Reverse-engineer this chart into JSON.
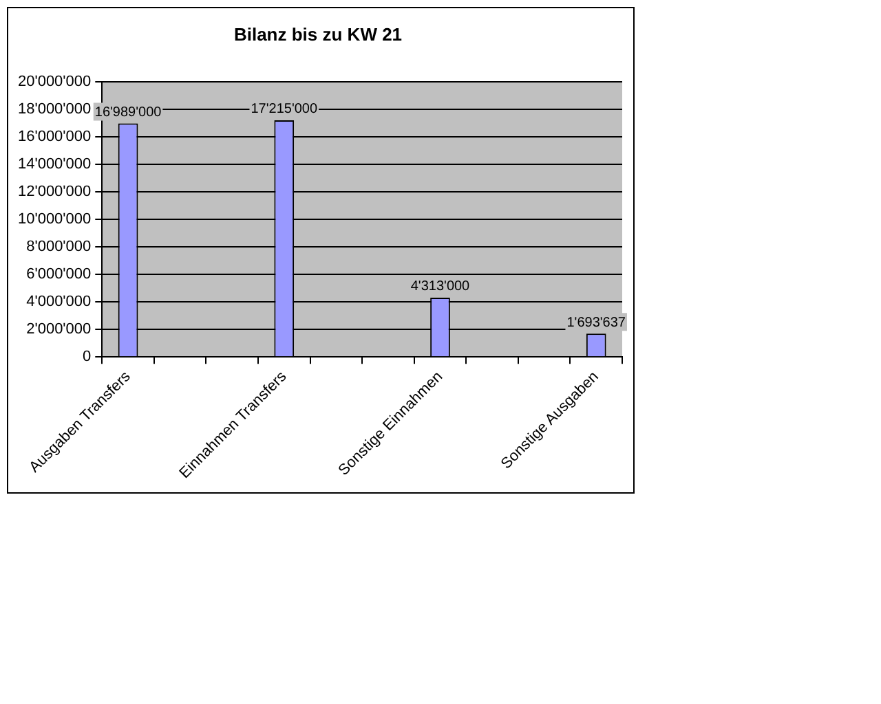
{
  "chart_data": {
    "type": "bar",
    "title": "Bilanz bis zu KW 21",
    "categories": [
      "Ausgaben Transfers",
      null,
      null,
      "Einnahmen Transfers",
      null,
      null,
      "Sonstige Einnahmen",
      null,
      null,
      "Sonstige Ausgaben"
    ],
    "values": [
      16989000,
      null,
      null,
      17215000,
      null,
      null,
      4313000,
      null,
      null,
      1693637
    ],
    "value_labels": [
      "16'989'000",
      null,
      null,
      "17'215'000",
      null,
      null,
      "4'313'000",
      null,
      null,
      "1'693'637"
    ],
    "color": "#9999ff",
    "ylim": [
      0,
      20000000
    ],
    "yticks": [
      {
        "value": 0,
        "label": "0"
      },
      {
        "value": 2000000,
        "label": "2'000'000"
      },
      {
        "value": 4000000,
        "label": "4'000'000"
      },
      {
        "value": 6000000,
        "label": "6'000'000"
      },
      {
        "value": 8000000,
        "label": "8'000'000"
      },
      {
        "value": 10000000,
        "label": "10'000'000"
      },
      {
        "value": 12000000,
        "label": "12'000'000"
      },
      {
        "value": 14000000,
        "label": "14'000'000"
      },
      {
        "value": 16000000,
        "label": "16'000'000"
      },
      {
        "value": 18000000,
        "label": "18'000'000"
      },
      {
        "value": 20000000,
        "label": "20'000'000"
      }
    ],
    "grid": "y",
    "legend": false
  }
}
